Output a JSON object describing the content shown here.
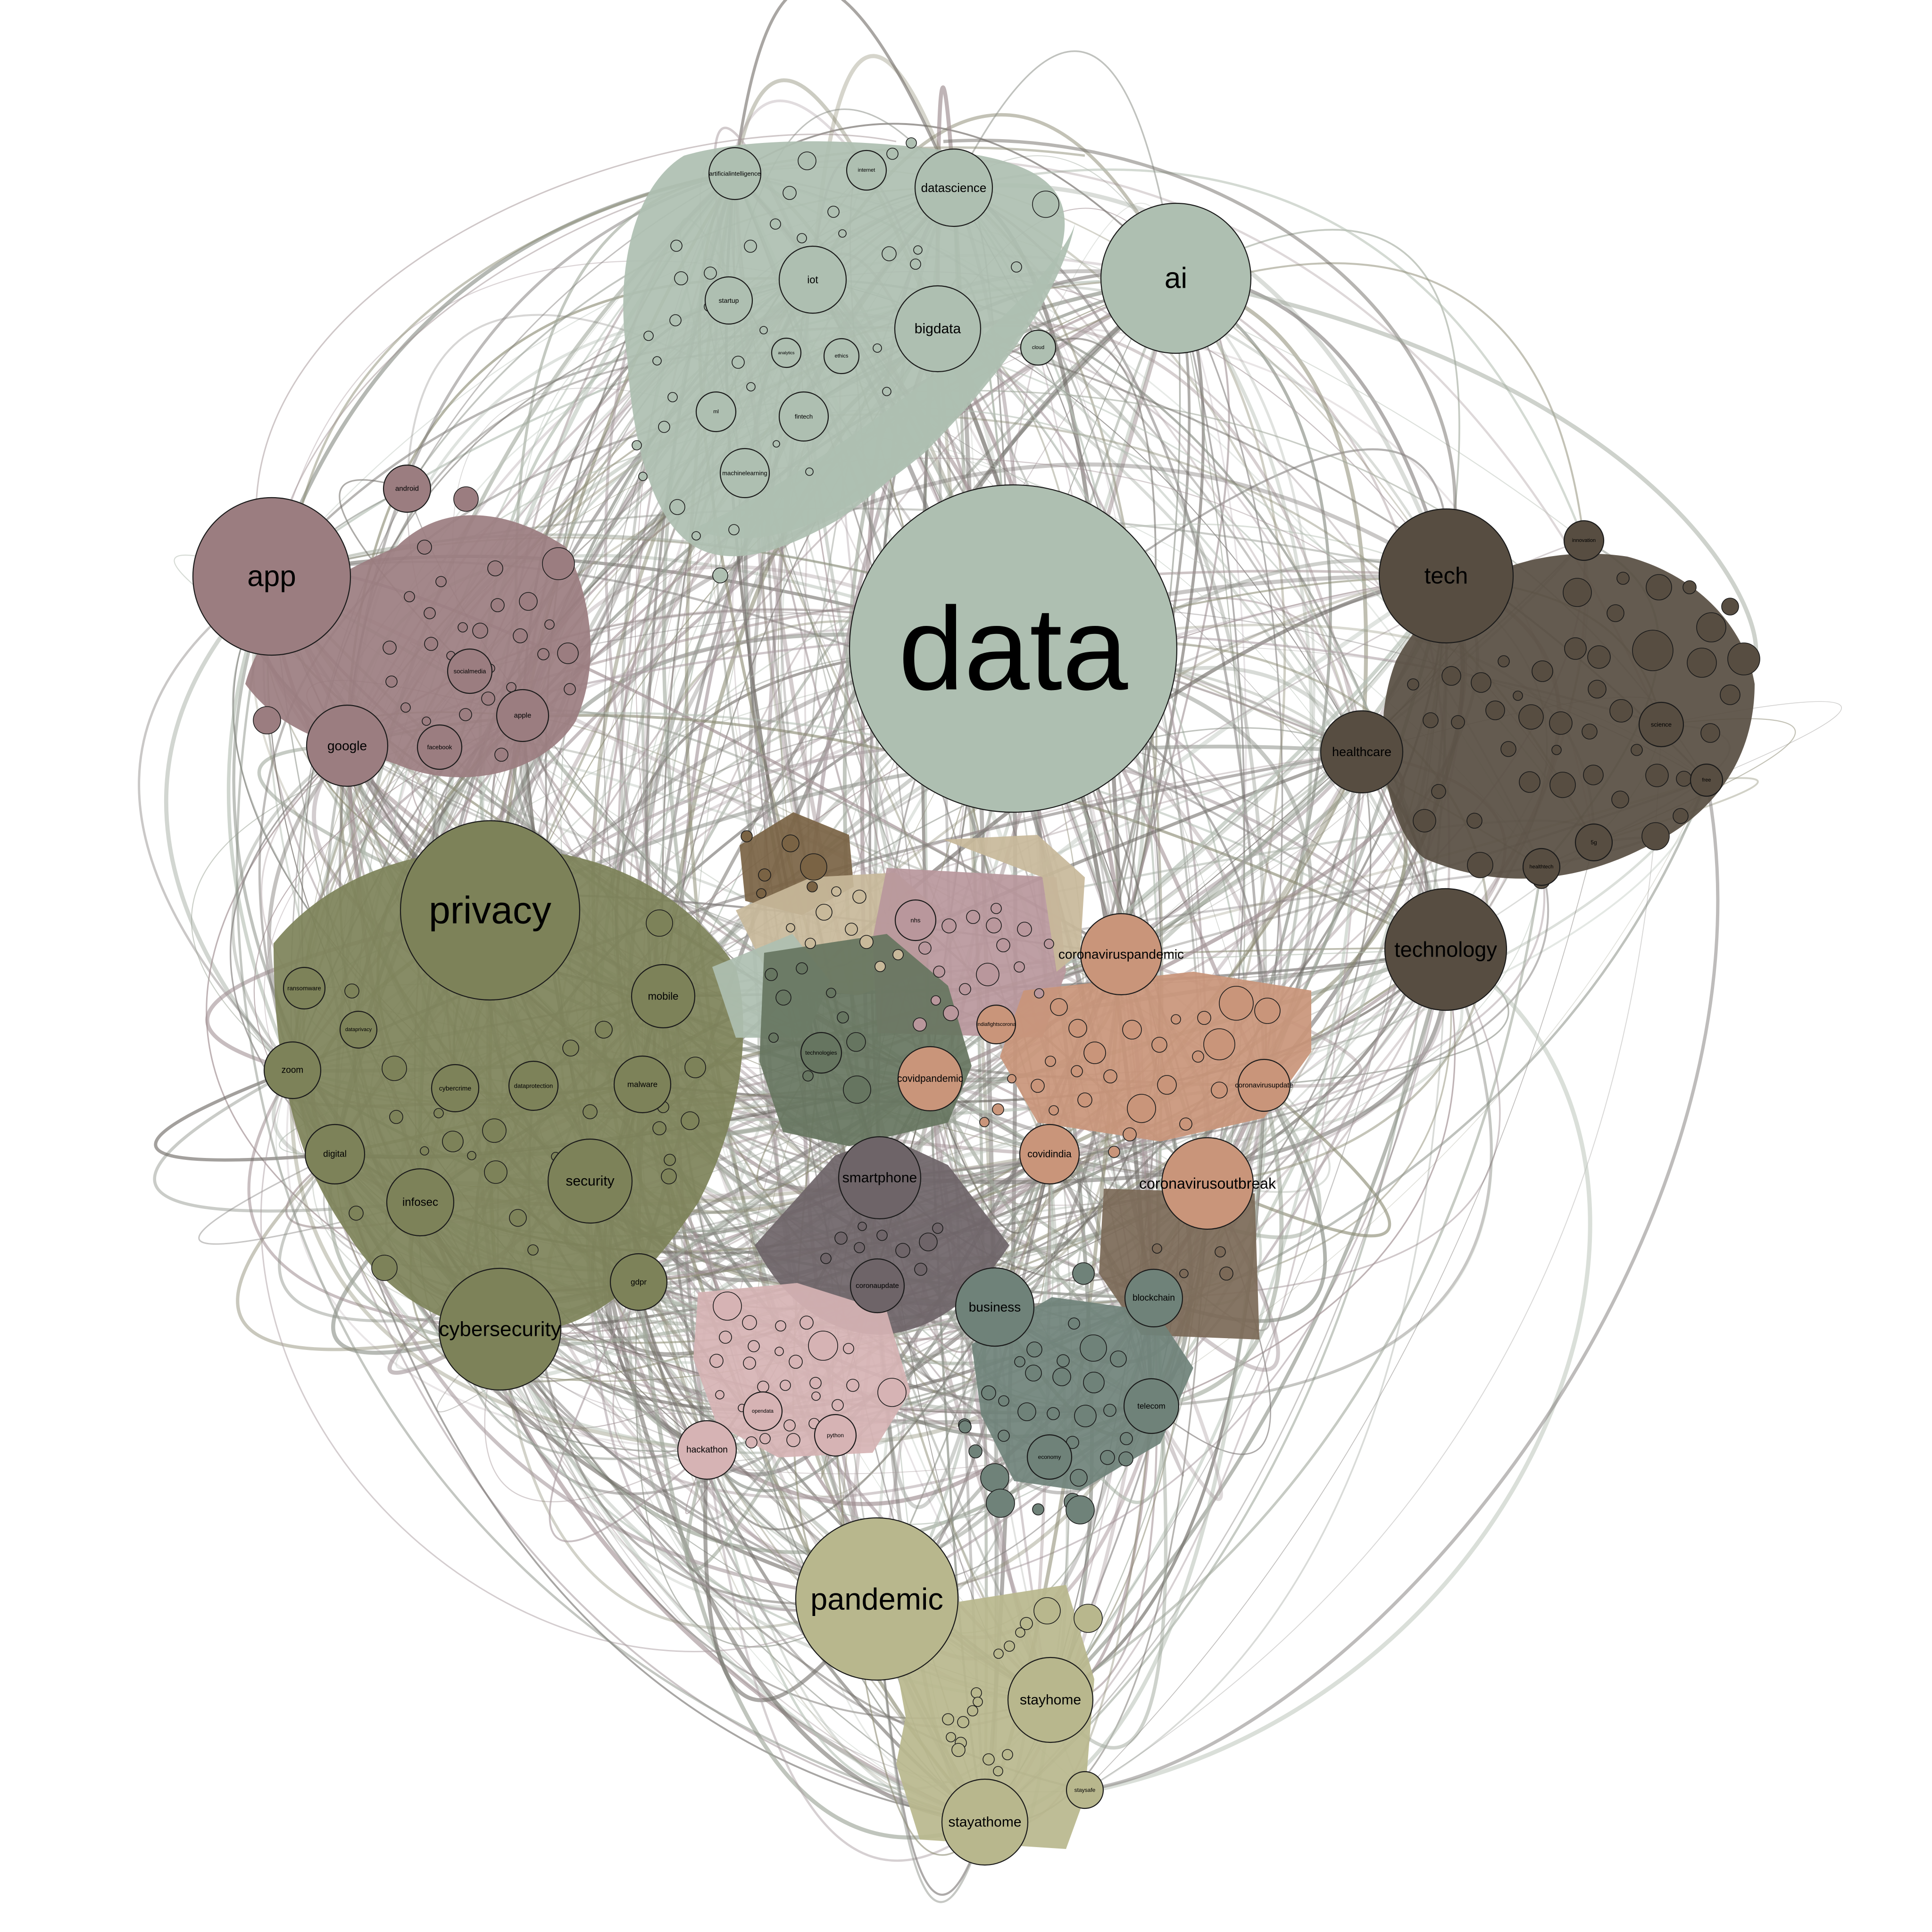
{
  "palette": {
    "tech_green": "#aebfb1",
    "social_mauve": "#9b7d80",
    "security_olive": "#7d8259",
    "techdark": "#574d41",
    "covid_orange": "#c9957a",
    "health_pink": "#b9979c",
    "forest": "#667560",
    "smartphone_grey": "#6e6468",
    "brown": "#7b6957",
    "business_teal": "#6f8279",
    "dev_pink": "#d6b3b4",
    "pandemic_khaki": "#b8b78d",
    "tan": "#c8b99a",
    "bronze": "#7a6344"
  },
  "nodes": [
    {
      "id": "data",
      "label": "data",
      "group": "tech_green"
    },
    {
      "id": "ai",
      "label": "ai",
      "group": "tech_green"
    },
    {
      "id": "datascience",
      "label": "datascience",
      "group": "tech_green"
    },
    {
      "id": "bigdata",
      "label": "bigdata",
      "group": "tech_green"
    },
    {
      "id": "iot",
      "label": "iot",
      "group": "tech_green"
    },
    {
      "id": "artificialintelligence",
      "label": "artificialintelligence",
      "group": "tech_green"
    },
    {
      "id": "internet",
      "label": "internet",
      "group": "tech_green"
    },
    {
      "id": "startup",
      "label": "startup",
      "group": "tech_green"
    },
    {
      "id": "ml",
      "label": "ml",
      "group": "tech_green"
    },
    {
      "id": "fintech",
      "label": "fintech",
      "group": "tech_green"
    },
    {
      "id": "machinelearning",
      "label": "machinelearning",
      "group": "tech_green"
    },
    {
      "id": "ethics",
      "label": "ethics",
      "group": "tech_green"
    },
    {
      "id": "analytics",
      "label": "analytics",
      "group": "tech_green"
    },
    {
      "id": "cloud",
      "label": "cloud",
      "group": "tech_green"
    },
    {
      "id": "app",
      "label": "app",
      "group": "social_mauve"
    },
    {
      "id": "android",
      "label": "android",
      "group": "social_mauve"
    },
    {
      "id": "google",
      "label": "google",
      "group": "social_mauve"
    },
    {
      "id": "facebook",
      "label": "facebook",
      "group": "social_mauve"
    },
    {
      "id": "socialmedia",
      "label": "socialmedia",
      "group": "social_mauve"
    },
    {
      "id": "apple",
      "label": "apple",
      "group": "social_mauve"
    },
    {
      "id": "privacy",
      "label": "privacy",
      "group": "security_olive"
    },
    {
      "id": "cybersecurity",
      "label": "cybersecurity",
      "group": "security_olive"
    },
    {
      "id": "security",
      "label": "security",
      "group": "security_olive"
    },
    {
      "id": "infosec",
      "label": "infosec",
      "group": "security_olive"
    },
    {
      "id": "mobile",
      "label": "mobile",
      "group": "security_olive"
    },
    {
      "id": "malware",
      "label": "malware",
      "group": "security_olive"
    },
    {
      "id": "zoom",
      "label": "zoom",
      "group": "security_olive"
    },
    {
      "id": "digital",
      "label": "digital",
      "group": "security_olive"
    },
    {
      "id": "gdpr",
      "label": "gdpr",
      "group": "security_olive"
    },
    {
      "id": "ransomware",
      "label": "ransomware",
      "group": "security_olive"
    },
    {
      "id": "dataprivacy",
      "label": "dataprivacy",
      "group": "security_olive"
    },
    {
      "id": "cybercrime",
      "label": "cybercrime",
      "group": "security_olive"
    },
    {
      "id": "dataprotection",
      "label": "dataprotection",
      "group": "security_olive"
    },
    {
      "id": "tech",
      "label": "tech",
      "group": "techdark"
    },
    {
      "id": "technology",
      "label": "technology",
      "group": "techdark"
    },
    {
      "id": "healthcare",
      "label": "healthcare",
      "group": "techdark"
    },
    {
      "id": "innovation",
      "label": "innovation",
      "group": "techdark"
    },
    {
      "id": "science",
      "label": "science",
      "group": "techdark"
    },
    {
      "id": "5g",
      "label": "5g",
      "group": "techdark"
    },
    {
      "id": "healthtech",
      "label": "healthtech",
      "group": "techdark"
    },
    {
      "id": "free",
      "label": "free",
      "group": "techdark"
    },
    {
      "id": "coronaviruspandemic",
      "label": "coronaviruspandemic",
      "group": "covid_orange"
    },
    {
      "id": "covidpandemic",
      "label": "covidpandemic",
      "group": "covid_orange"
    },
    {
      "id": "covidindia",
      "label": "covidindia",
      "group": "covid_orange"
    },
    {
      "id": "coronavirusoutbreak",
      "label": "coronavirusoutbreak",
      "group": "covid_orange"
    },
    {
      "id": "coronavirusupdate",
      "label": "coronavirusupdate",
      "group": "covid_orange"
    },
    {
      "id": "indiafightscorona",
      "label": "indiafightscorona",
      "group": "covid_orange"
    },
    {
      "id": "nhs",
      "label": "nhs",
      "group": "health_pink"
    },
    {
      "id": "technologies",
      "label": "technologies",
      "group": "forest"
    },
    {
      "id": "smartphone",
      "label": "smartphone",
      "group": "smartphone_grey"
    },
    {
      "id": "coronaupdate",
      "label": "coronaupdate",
      "group": "smartphone_grey"
    },
    {
      "id": "blockchain",
      "label": "blockchain",
      "group": "business_teal"
    },
    {
      "id": "business",
      "label": "business",
      "group": "business_teal"
    },
    {
      "id": "telecom",
      "label": "telecom",
      "group": "business_teal"
    },
    {
      "id": "economy",
      "label": "economy",
      "group": "business_teal"
    },
    {
      "id": "hackathon",
      "label": "hackathon",
      "group": "dev_pink"
    },
    {
      "id": "python",
      "label": "python",
      "group": "dev_pink"
    },
    {
      "id": "opendata",
      "label": "opendata",
      "group": "dev_pink"
    },
    {
      "id": "pandemic",
      "label": "pandemic",
      "group": "pandemic_khaki"
    },
    {
      "id": "stayhome",
      "label": "stayhome",
      "group": "pandemic_khaki"
    },
    {
      "id": "stayathome",
      "label": "stayathome",
      "group": "pandemic_khaki"
    },
    {
      "id": "staysafe",
      "label": "staysafe",
      "group": "pandemic_khaki"
    }
  ]
}
